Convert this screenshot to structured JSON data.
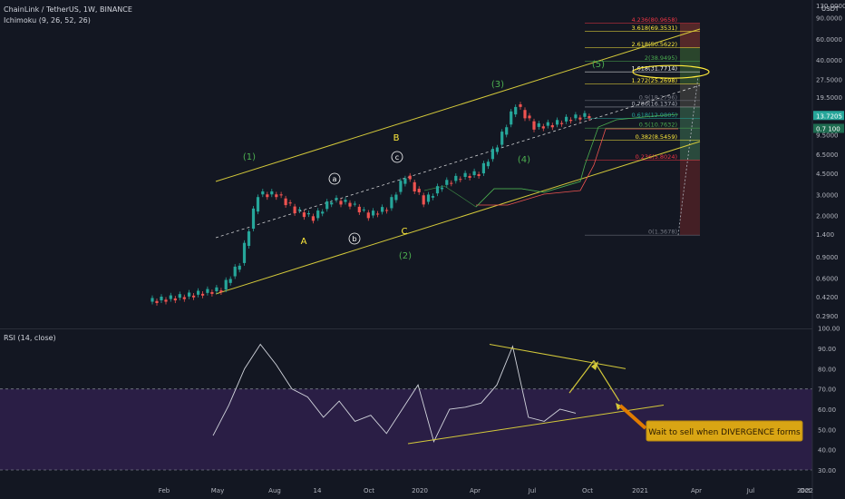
{
  "header": {
    "title": "ChainLink / TetherUS, 1W, BINANCE",
    "indicator": "Ichimoku (9, 26, 52, 26)",
    "currency": "USDT"
  },
  "rsi_header": "RSI (14, close)",
  "price_axis": [
    "130.0000",
    "90.0000",
    "60.0000",
    "40.0000",
    "27.5000",
    "19.5000",
    "13.7205",
    "9.5000",
    "6.5000",
    "4.5000",
    "3.0000",
    "2.0000",
    "1.400",
    "0.9000",
    "0.6000",
    "0.4200",
    "0.2900"
  ],
  "last_price": "13.7205",
  "price_tag2": "0.7 100",
  "rsi_axis": [
    "100.00",
    "90.00",
    "80.00",
    "70.00",
    "60.00",
    "50.00",
    "40.00",
    "30.00"
  ],
  "time_axis": [
    "Feb",
    "May",
    "Aug",
    "14",
    "Oct",
    "2020",
    "Apr",
    "Jul",
    "Oct",
    "2021",
    "Apr",
    "Jul",
    "Oct",
    "2022"
  ],
  "fib_levels": [
    {
      "label": "4.236(80.9658)",
      "value": 80.9658,
      "color": "#f23645"
    },
    {
      "label": "3.618(69.3531)",
      "value": 69.3531,
      "color": "#ffeb3b"
    },
    {
      "label": "2.618(50.5622)",
      "value": 50.5622,
      "color": "#ffeb3b"
    },
    {
      "label": "2(38.9495)",
      "value": 38.9495,
      "color": "#4caf50"
    },
    {
      "label": "1.618(31.7714)",
      "value": 31.7714,
      "color": "#ffffff"
    },
    {
      "label": "1.272(25.2698)",
      "value": 25.2698,
      "color": "#ffeb3b"
    },
    {
      "label": "0.9(18.2796)",
      "value": 18.2796,
      "color": "#787b86"
    },
    {
      "label": "0.786(16.1374)",
      "value": 16.1374,
      "color": "#b2b5be"
    },
    {
      "label": "0.618(12.9805)",
      "value": 12.9805,
      "color": "#26a69a"
    },
    {
      "label": "0.5(10.7632)",
      "value": 10.7632,
      "color": "#4caf50"
    },
    {
      "label": "0.382(8.5459)",
      "value": 8.5459,
      "color": "#ffeb3b"
    },
    {
      "label": "0.236(5.8024)",
      "value": 5.8024,
      "color": "#f23645"
    },
    {
      "label": "0(1.3678)",
      "value": 1.3678,
      "color": "#787b86"
    }
  ],
  "wave_labels": [
    "(1)",
    "(2)",
    "(3)",
    "(4)",
    "(5)",
    "A",
    "B",
    "C",
    "a",
    "b",
    "c"
  ],
  "callout": "Wait to sell when DIVERGENCE forms",
  "colors": {
    "up": "#26a69a",
    "down": "#ef5350",
    "channel": "#d4c93a",
    "rsi_band": "#2a1e45",
    "rsi_line": "#d1d4dc",
    "callout_bg": "#d9a514",
    "arrow": "#e07b00"
  },
  "chart_data": {
    "type": "line",
    "symbol": "ChainLink / TetherUS",
    "interval": "1W",
    "scale": "log",
    "price_series": {
      "name": "",
      "x": [
        "2019-01",
        "2019-02",
        "2019-03",
        "2019-04",
        "2019-05",
        "2019-06",
        "2019-07",
        "2019-08",
        "2019-09",
        "2019-10",
        "2019-11",
        "2019-12",
        "2020-01",
        "2020-02",
        "2020-03",
        "2020-04",
        "2020-05",
        "2020-06",
        "2020-07",
        "2020-08",
        "2020-09",
        "2020-10",
        "2020-11",
        "2020-12"
      ],
      "y": [
        0.4,
        0.42,
        0.45,
        0.48,
        0.8,
        3.0,
        3.0,
        2.2,
        1.9,
        2.7,
        2.5,
        2.0,
        2.3,
        4.3,
        2.6,
        3.6,
        4.2,
        4.5,
        7.8,
        17.0,
        11.0,
        11.5,
        13.0,
        13.72
      ]
    },
    "rsi_series": {
      "name": "",
      "x": [
        "2019-01",
        "2019-02",
        "2019-03",
        "2019-04",
        "2019-05",
        "2019-06",
        "2019-07",
        "2019-08",
        "2019-09",
        "2019-10",
        "2019-11",
        "2019-12",
        "2020-01",
        "2020-02",
        "2020-03",
        "2020-04",
        "2020-05",
        "2020-06",
        "2020-07",
        "2020-08",
        "2020-09",
        "2020-10",
        "2020-11",
        "2020-12"
      ],
      "y": [
        47,
        62,
        80,
        92,
        82,
        70,
        66,
        56,
        64,
        54,
        57,
        48,
        60,
        72,
        44,
        60,
        61,
        63,
        72,
        91,
        56,
        54,
        60,
        58
      ]
    },
    "rsi_range": [
      25,
      100
    ],
    "rsi_band": [
      30,
      70
    ],
    "grid": false
  }
}
